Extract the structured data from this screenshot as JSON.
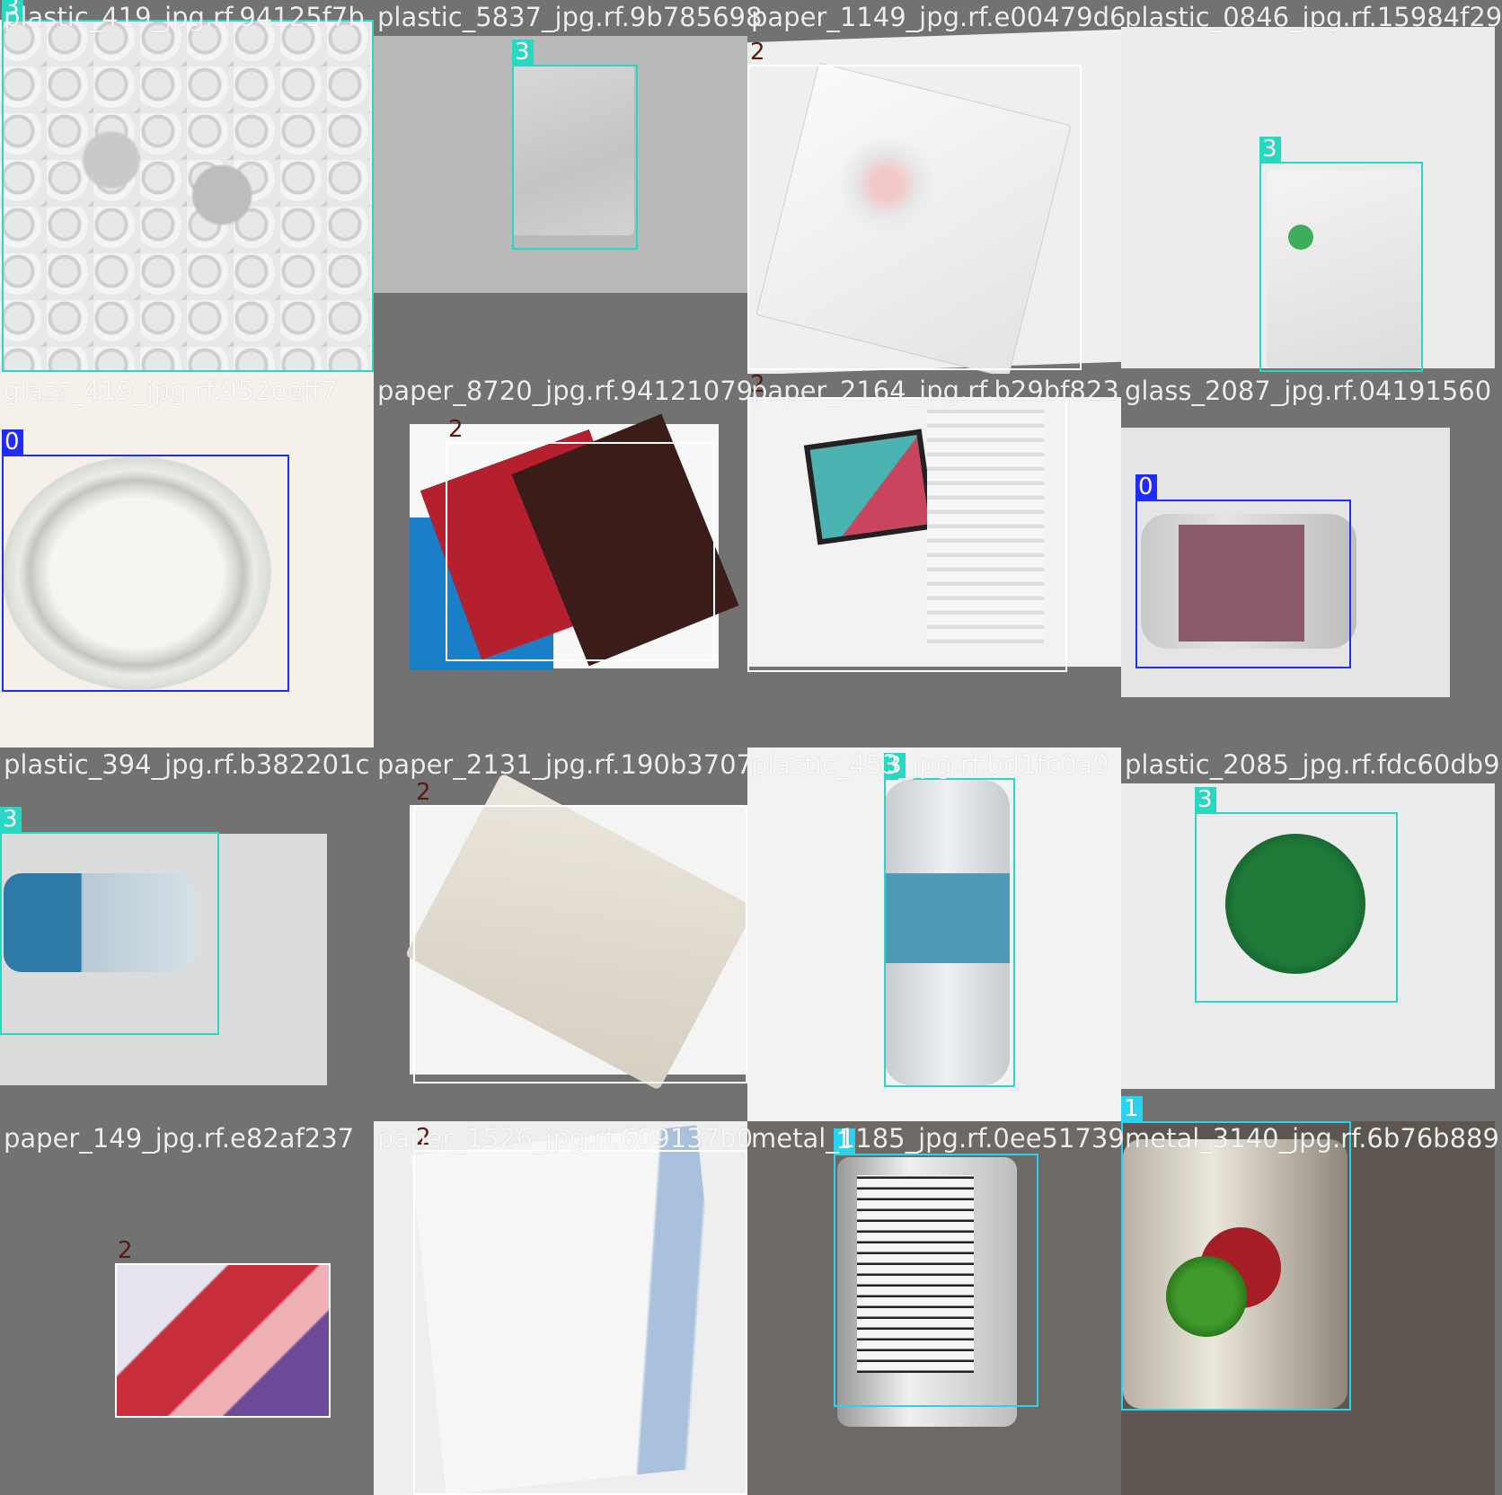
{
  "mosaic_title": "",
  "classes": {
    "0": {
      "color": "#1f2bff",
      "label_color": "#ffffff"
    },
    "1": {
      "color": "#29d3f0",
      "label_color": "#ffffff"
    },
    "2": {
      "color": "#ffffff",
      "label_color": "#5a1a10"
    },
    "3": {
      "color": "#27d9c2",
      "label_color": "#ffffff"
    }
  },
  "tiles": [
    {
      "filename": "plastic_419_jpg.rf.94125f7b",
      "class_id": "3",
      "object": "bubble-wrap",
      "scene": "white-flat"
    },
    {
      "filename": "plastic_5837_jpg.rf.9b785698",
      "class_id": "3",
      "object": "plastic-bag",
      "scene": "gray-card"
    },
    {
      "filename": "paper_1149_jpg.rf.e00479d6",
      "class_id": "2",
      "object": "paper-leaflet",
      "scene": "white-tilted"
    },
    {
      "filename": "plastic_0846_jpg.rf.15984f29",
      "class_id": "3",
      "object": "plastic-bag",
      "scene": "white-tilted"
    },
    {
      "filename": "glass_419_jpg.rf.952eeff7",
      "class_id": "0",
      "object": "glass-jar-top",
      "scene": "white-flat"
    },
    {
      "filename": "paper_8720_jpg.rf.94121079",
      "class_id": "2",
      "object": "paper-flyers",
      "scene": "gray-card"
    },
    {
      "filename": "paper_2164_jpg.rf.b29bf823",
      "class_id": "2",
      "object": "paper-magazine",
      "scene": "white-tilted"
    },
    {
      "filename": "glass_2087_jpg.rf.04191560",
      "class_id": "0",
      "object": "glass-jar-side",
      "scene": "white-card"
    },
    {
      "filename": "plastic_394_jpg.rf.b382201c",
      "class_id": "3",
      "object": "plastic-bottle-side",
      "scene": "white-tilted"
    },
    {
      "filename": "paper_2131_jpg.rf.190b3707",
      "class_id": "2",
      "object": "paper-envelope",
      "scene": "white-tilted"
    },
    {
      "filename": "plastic_453_jpg.rf.bd1fc0a9",
      "class_id": "3",
      "object": "plastic-bottle-upright",
      "scene": "white-flat"
    },
    {
      "filename": "plastic_2085_jpg.rf.fdc60db9",
      "class_id": "3",
      "object": "plastic-lid",
      "scene": "white-tilted"
    },
    {
      "filename": "paper_149_jpg.rf.e82af237",
      "class_id": "2",
      "object": "paper-ad",
      "scene": "gray-flat"
    },
    {
      "filename": "paper_1526_jpg.rf.609137b0",
      "class_id": "2",
      "object": "paper-envelope-blue",
      "scene": "white-flat"
    },
    {
      "filename": "metal_1185_jpg.rf.0ee51739",
      "class_id": "1",
      "object": "metal-can-label",
      "scene": "gray-flat"
    },
    {
      "filename": "metal_3140_jpg.rf.6b76b889",
      "class_id": "1",
      "object": "metal-can-peas",
      "scene": "dark-flat"
    }
  ]
}
